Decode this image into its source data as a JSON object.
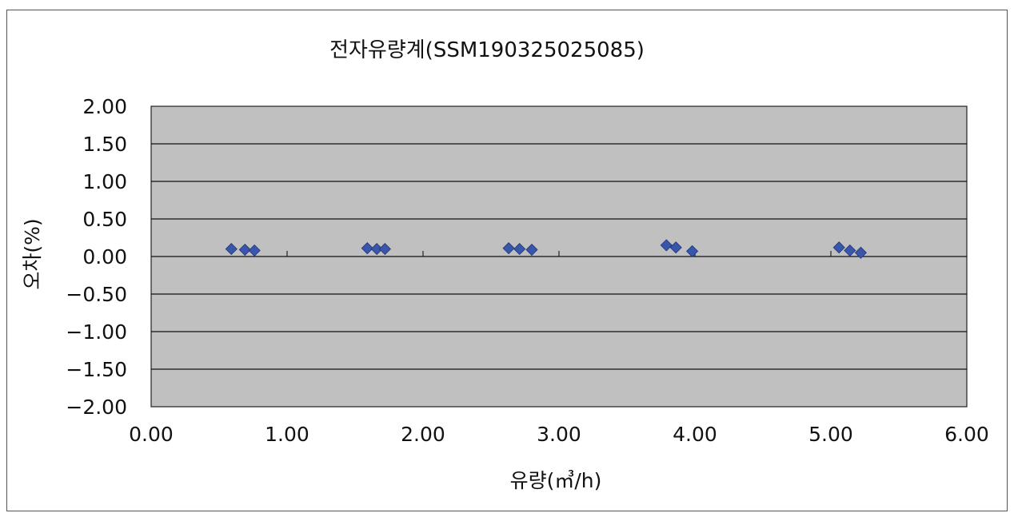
{
  "chart_data": {
    "type": "scatter",
    "title": "전자유량계(SSM190325025085)",
    "xlabel": "유량(㎥/h)",
    "ylabel": "오차(%)",
    "xlim": [
      0,
      6
    ],
    "ylim": [
      -2,
      2
    ],
    "x_ticks": [
      "0.00",
      "1.00",
      "2.00",
      "3.00",
      "4.00",
      "5.00",
      "6.00"
    ],
    "y_ticks": [
      "2.00",
      "1.50",
      "1.00",
      "0.50",
      "0.00",
      "-0.50",
      "-1.00",
      "-1.50",
      "-2.00"
    ],
    "grid": true,
    "legend": "none",
    "colors": {
      "plot_background": "#c0c0c0",
      "marker": "#3a56a8",
      "gridline": "#111111"
    },
    "series": [
      {
        "marker": "diamond",
        "x": [
          0.59,
          0.69,
          0.76,
          1.59,
          1.66,
          1.72,
          2.63,
          2.71,
          2.8,
          3.79,
          3.86,
          3.98,
          5.06,
          5.14,
          5.22
        ],
        "y": [
          0.1,
          0.09,
          0.08,
          0.11,
          0.1,
          0.1,
          0.11,
          0.1,
          0.09,
          0.15,
          0.12,
          0.07,
          0.12,
          0.08,
          0.05
        ]
      }
    ]
  }
}
